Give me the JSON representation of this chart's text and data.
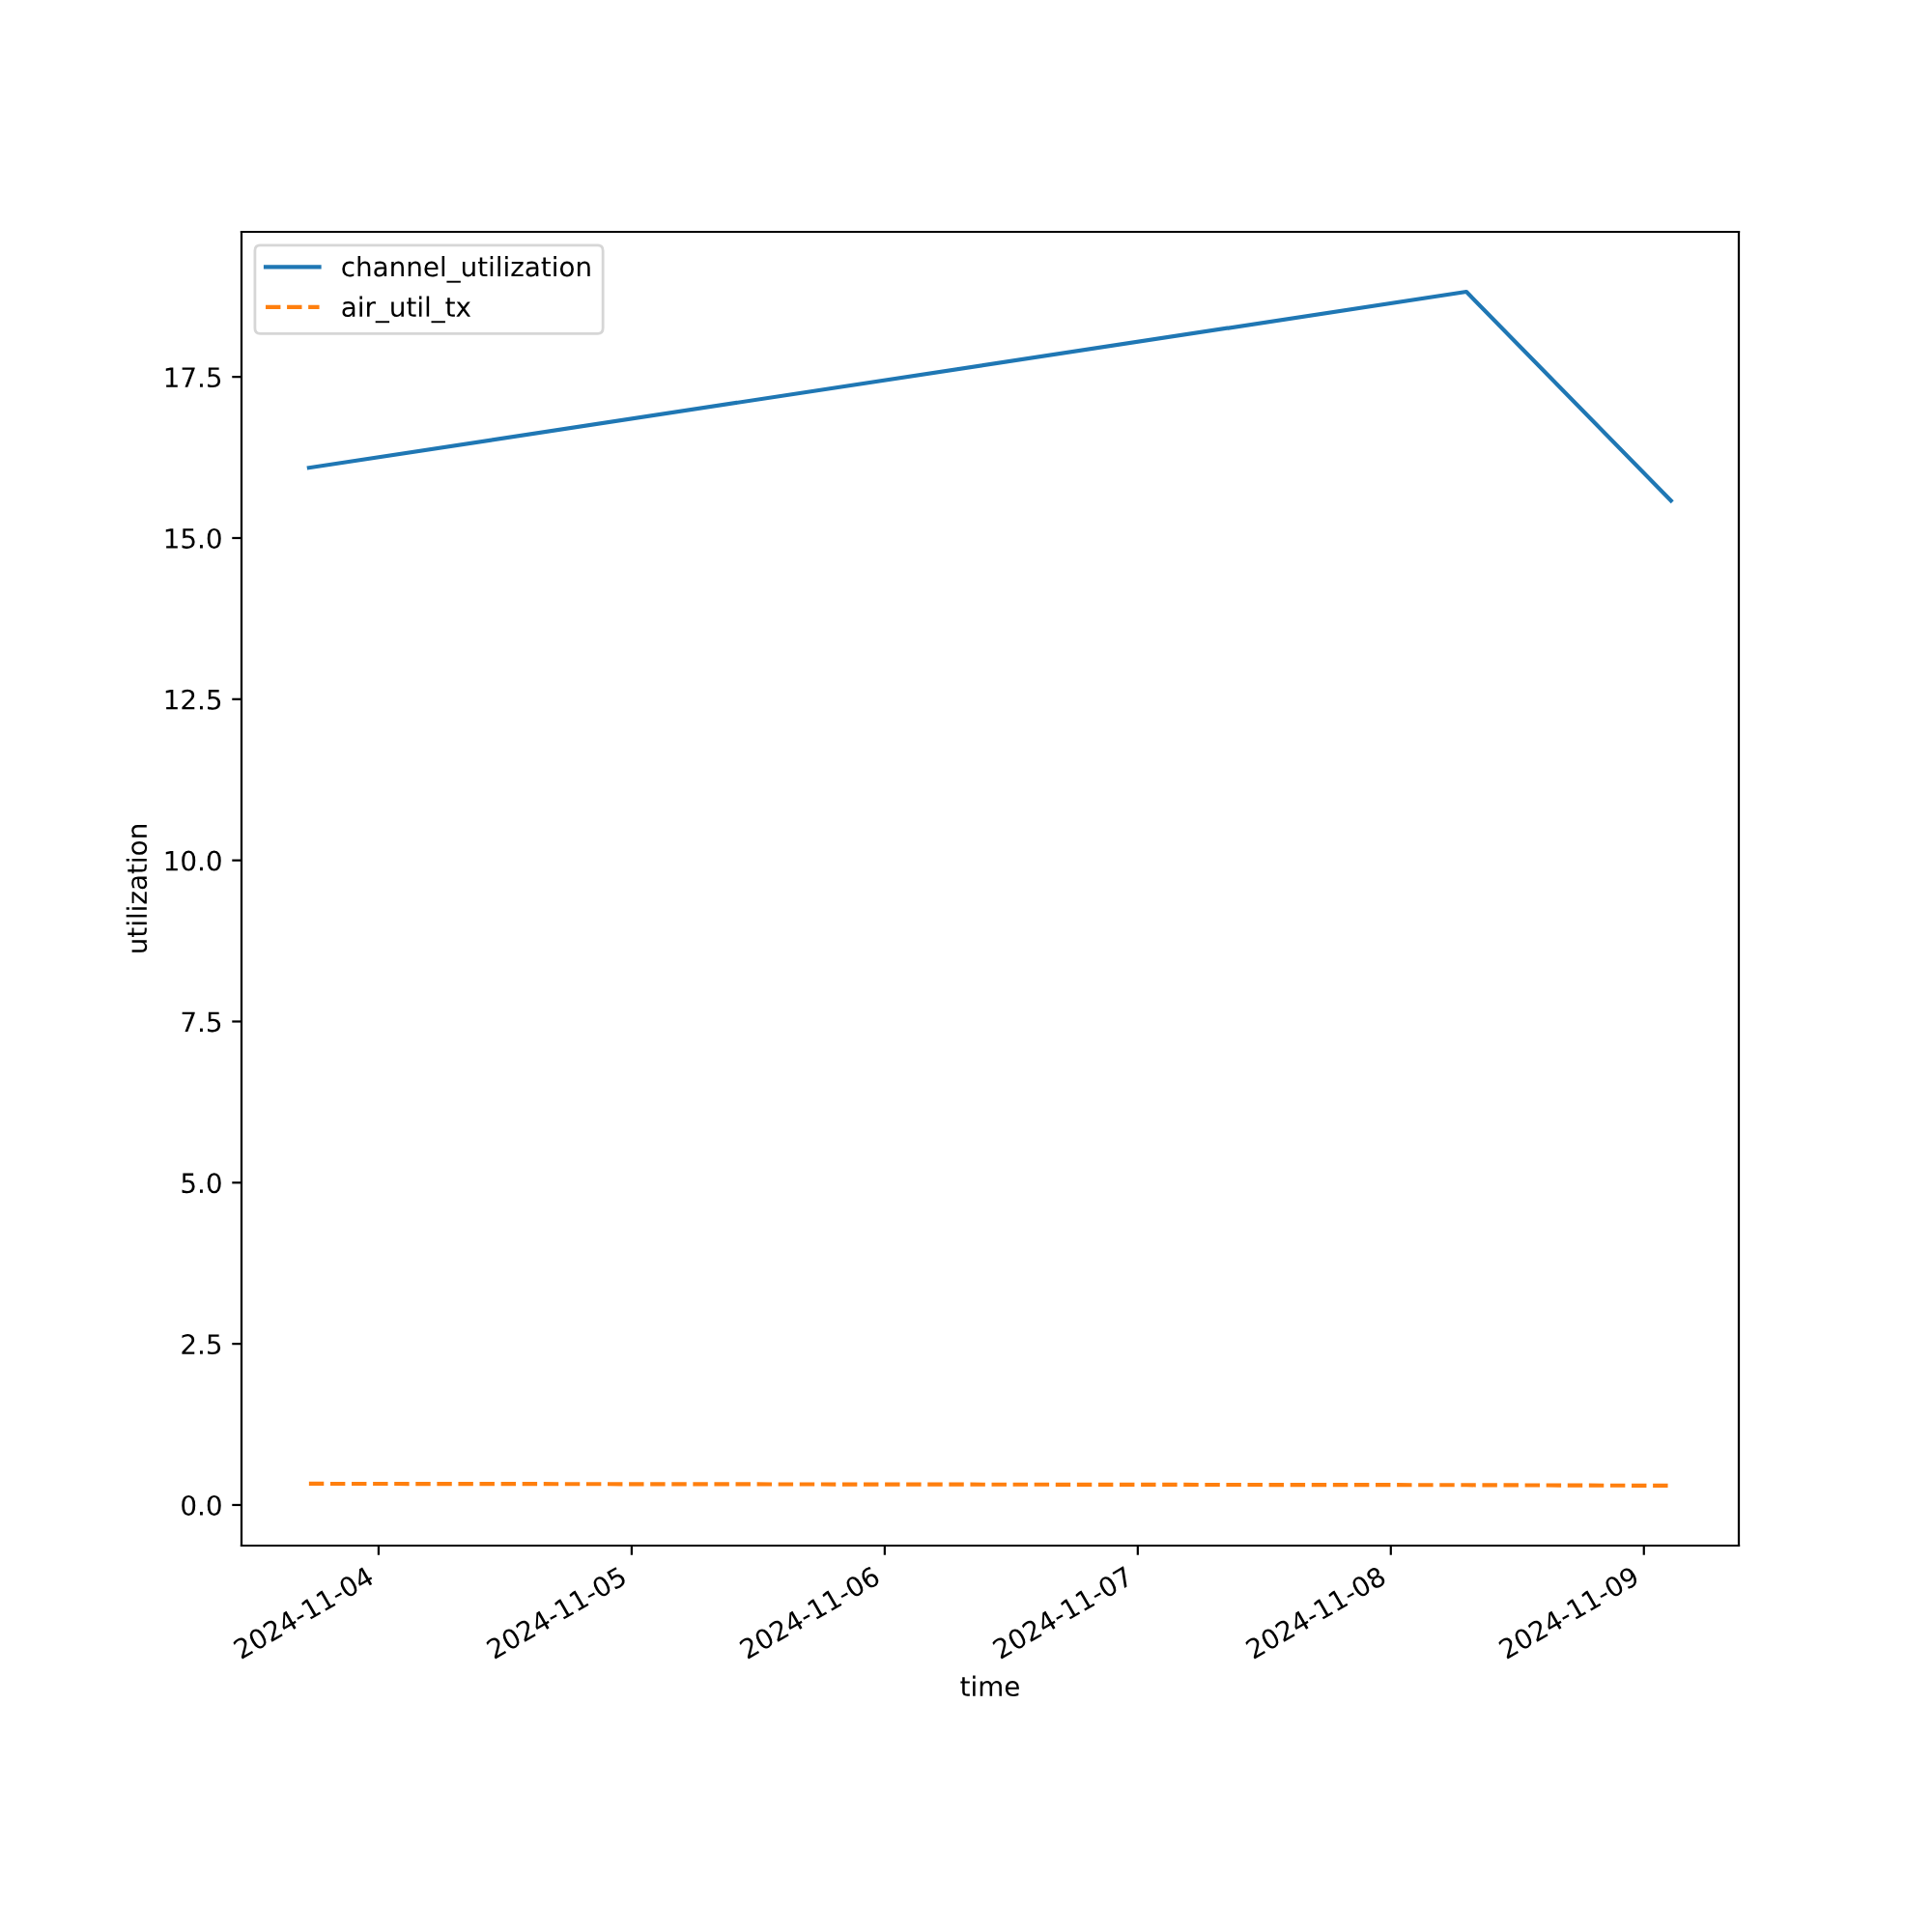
{
  "chart_data": {
    "type": "line",
    "xlabel": "time",
    "ylabel": "utilization",
    "x": [
      "2024-11-03T17:24",
      "2024-11-08T07:10",
      "2024-11-09T02:34"
    ],
    "series": [
      {
        "name": "channel_utilization",
        "color": "#1f77b4",
        "line_style": "solid",
        "values": [
          16.09,
          18.82,
          15.58
        ]
      },
      {
        "name": "air_util_tx",
        "color": "#ff7f0e",
        "line_style": "dashed",
        "values": [
          0.33,
          0.31,
          0.3
        ]
      }
    ],
    "xlim": [
      "2024-11-03T11:00",
      "2024-11-09T09:00"
    ],
    "xticks": [
      "2024-11-04",
      "2024-11-05",
      "2024-11-06",
      "2024-11-07",
      "2024-11-08",
      "2024-11-09"
    ],
    "ylim": [
      -0.63,
      19.75
    ],
    "yticks": [
      {
        "value": 0,
        "label": "0.0"
      },
      {
        "value": 2.5,
        "label": "2.5"
      },
      {
        "value": 5,
        "label": "5.0"
      },
      {
        "value": 7.5,
        "label": "7.5"
      },
      {
        "value": 10,
        "label": "10.0"
      },
      {
        "value": 12.5,
        "label": "12.5"
      },
      {
        "value": 15,
        "label": "15.0"
      },
      {
        "value": 17.5,
        "label": "17.5"
      }
    ],
    "legend": "top left",
    "grid": false
  }
}
